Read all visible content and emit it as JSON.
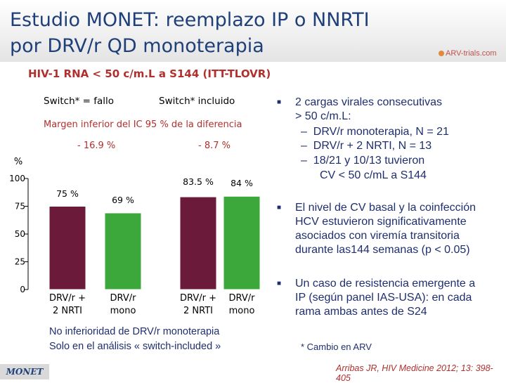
{
  "header": {
    "title_line1": "Estudio MONET: reemplazo IP o NNRTI",
    "title_line2": "por DRV/r QD monoterapia",
    "logo_text": "ARV-trials.com"
  },
  "chart_data": {
    "type": "bar",
    "title": "HIV-1 RNA < 50 c/m.L a S144 (ITT-TLOVR)",
    "ylabel": "%",
    "ylim": [
      0,
      100
    ],
    "yticks": [
      0,
      25,
      50,
      75,
      100
    ],
    "groups": [
      {
        "label": "Switch* = fallo",
        "difference": "- 16.9 %"
      },
      {
        "label": "Switch* incluido",
        "difference": "- 8.7 %"
      }
    ],
    "margin_label": "Margen inferior del IC 95 %  de la diferencia",
    "bars": [
      {
        "category": "DRV/r + 2 NRTI",
        "cat_line1": "DRV/r +",
        "cat_line2": "2 NRTI",
        "value": 75,
        "label": "75 %",
        "color": "#6b1a3a",
        "group": 0
      },
      {
        "category": "DRV/r mono",
        "cat_line1": "DRV/r",
        "cat_line2": "mono",
        "value": 69,
        "label": "69 %",
        "color": "#3ca83c",
        "group": 0
      },
      {
        "category": "DRV/r + 2 NRTI",
        "cat_line1": "DRV/r +",
        "cat_line2": "2 NRTI",
        "value": 83.5,
        "label": "83.5 %",
        "color": "#6b1a3a",
        "group": 1
      },
      {
        "category": "DRV/r mono",
        "cat_line1": "DRV/r",
        "cat_line2": "mono",
        "value": 84,
        "label": "84 %",
        "color": "#3ca83c",
        "group": 1
      }
    ]
  },
  "bullets": {
    "b1_line1": "2  cargas virales consecutivas",
    "b1_line2": "> 50 c/m.L:",
    "b1_sub1": "DRV/r monoterapia, N = 21",
    "b1_sub2": "DRV/r + 2 NRTI, N = 13",
    "b1_sub3_line1": "18/21 y 10/13 tuvieron",
    "b1_sub3_line2": "CV < 50 c/mL a S144",
    "b2_line1": "El nivel de CV  basal y la coinfección",
    "b2_line2": "HCV estuvieron  significativamente",
    "b2_line3": "asociados con  viremía transitoria",
    "b2_line4": "durante las144 semanas (p < 0.05)",
    "b3_line1": "Un caso de resistencia emergente a",
    "b3_line2": "IP (según panel IAS-USA): en cada",
    "b3_line3": "rama ambas antes de S24",
    "dash": "–",
    "square": "■"
  },
  "footer": {
    "note_line1": "No inferioridad de DRV/r monoterapia",
    "note_line2": "Solo en el análisis « switch-included  »",
    "cambio": "* Cambio en ARV",
    "reference": "Arribas JR, HIV Medicine 2012; 13: 398-405",
    "monet_tag": "MONET"
  }
}
